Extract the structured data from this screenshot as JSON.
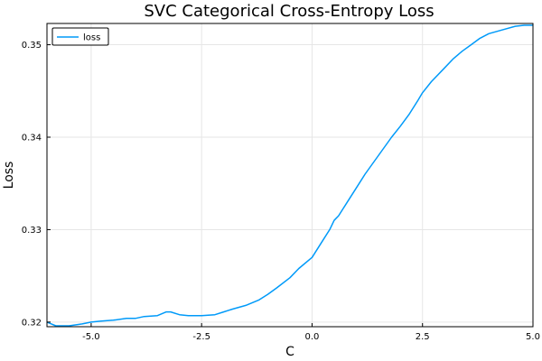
{
  "chart_data": {
    "type": "line",
    "title": "SVC Categorical Cross-Entropy Loss",
    "xlabel": "C",
    "ylabel": "Loss",
    "xlim": [
      -6,
      5
    ],
    "ylim": [
      0.3195,
      0.3523
    ],
    "xticks": [
      -5.0,
      -2.5,
      0.0,
      2.5,
      5.0
    ],
    "xtick_labels": [
      "-5.0",
      "-2.5",
      "0.0",
      "2.5",
      "5.0"
    ],
    "yticks": [
      0.32,
      0.33,
      0.34,
      0.35
    ],
    "ytick_labels": [
      "0.32",
      "0.33",
      "0.34",
      "0.35"
    ],
    "grid": true,
    "legend_position": "top-left",
    "series": [
      {
        "name": "loss",
        "color": "#009af9",
        "x": [
          -6.0,
          -5.8,
          -5.5,
          -5.2,
          -5.0,
          -4.8,
          -4.5,
          -4.2,
          -4.0,
          -3.8,
          -3.5,
          -3.3,
          -3.2,
          -3.0,
          -2.8,
          -2.5,
          -2.2,
          -2.0,
          -1.8,
          -1.5,
          -1.2,
          -1.0,
          -0.8,
          -0.5,
          -0.3,
          0.0,
          0.2,
          0.4,
          0.5,
          0.6,
          0.8,
          1.0,
          1.2,
          1.5,
          1.8,
          2.0,
          2.2,
          2.4,
          2.5,
          2.7,
          3.0,
          3.2,
          3.4,
          3.6,
          3.8,
          4.0,
          4.3,
          4.6,
          4.8,
          5.0
        ],
        "y": [
          0.32,
          0.3196,
          0.3196,
          0.3198,
          0.32,
          0.3201,
          0.3202,
          0.3204,
          0.3204,
          0.3206,
          0.3207,
          0.3211,
          0.3211,
          0.3208,
          0.3207,
          0.3207,
          0.3208,
          0.3211,
          0.3214,
          0.3218,
          0.3224,
          0.323,
          0.3237,
          0.3248,
          0.3258,
          0.327,
          0.3285,
          0.33,
          0.331,
          0.3315,
          0.333,
          0.3345,
          0.336,
          0.338,
          0.34,
          0.3412,
          0.3425,
          0.344,
          0.3448,
          0.346,
          0.3475,
          0.3485,
          0.3493,
          0.35,
          0.3507,
          0.3512,
          0.3516,
          0.352,
          0.3521,
          0.3521
        ]
      }
    ]
  }
}
